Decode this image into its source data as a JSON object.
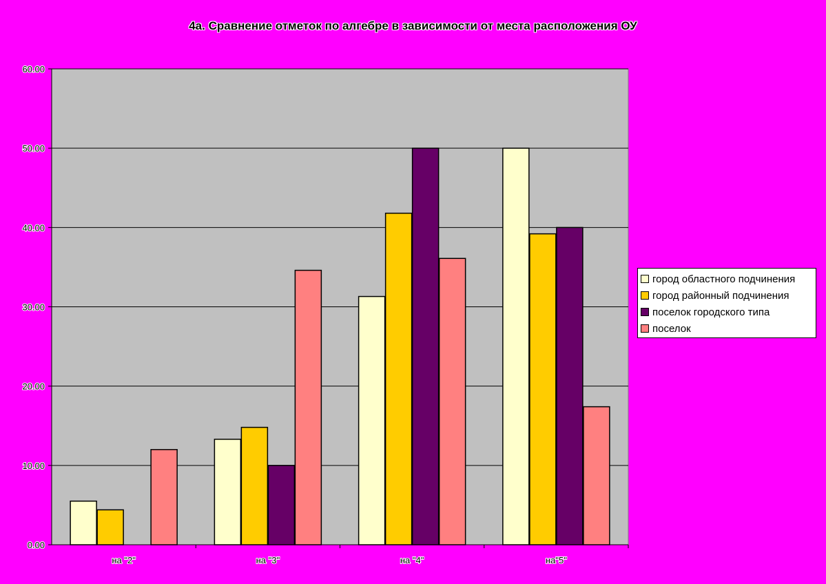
{
  "chart_data": {
    "type": "bar",
    "title": "4а. Сравнение отметок по алгебре в зависимости от места расположения ОУ",
    "categories": [
      "на \"2\"",
      "на \"3\"",
      "на \"4\"",
      "на\"5\""
    ],
    "series": [
      {
        "name": "город областного подчинения",
        "color": "#FFFFCC",
        "values": [
          5.5,
          13.3,
          31.3,
          50.0
        ]
      },
      {
        "name": "город районный подчинения",
        "color": "#FFCC00",
        "values": [
          4.4,
          14.8,
          41.8,
          39.2
        ]
      },
      {
        "name": "поселок городского типа",
        "color": "#660066",
        "values": [
          0.0,
          10.0,
          50.0,
          40.0
        ]
      },
      {
        "name": "поселок",
        "color": "#FF8080",
        "values": [
          12.0,
          34.6,
          36.1,
          17.4
        ]
      }
    ],
    "y_ticks": [
      "0.00",
      "10.00",
      "20.00",
      "30.00",
      "40.00",
      "50.00",
      "60.00"
    ],
    "ylim": [
      0,
      60
    ],
    "grid": true,
    "legend_position": "right",
    "plot_background": "#C0C0C0",
    "page_background": "#FF00FF"
  }
}
